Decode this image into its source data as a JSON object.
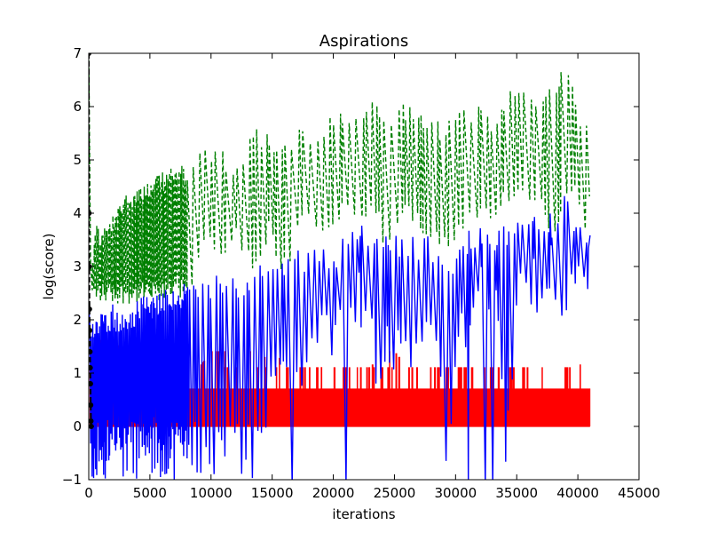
{
  "chart_data": {
    "type": "line",
    "title": "Aspirations",
    "xlabel": "iterations",
    "ylabel": "log(score)",
    "xlim": [
      0,
      45000
    ],
    "ylim": [
      -1,
      7
    ],
    "xticks": [
      0,
      5000,
      10000,
      15000,
      20000,
      25000,
      30000,
      35000,
      40000,
      45000
    ],
    "yticks": [
      -1,
      0,
      1,
      2,
      3,
      4,
      5,
      6,
      7
    ],
    "grid": false,
    "legend": "none",
    "series": [
      {
        "color": "#008000",
        "style": "dashed",
        "x": [
          0,
          200,
          500,
          1000,
          2000,
          3000,
          4000,
          5000,
          6000,
          7000,
          7800,
          8500,
          9500,
          10500,
          11500,
          12500,
          13500,
          14500,
          15500,
          16500,
          17500,
          18500,
          19500,
          20500,
          21500,
          22500,
          23500,
          24000,
          25000,
          26000,
          27000,
          28000,
          29000,
          30000,
          31000,
          32000,
          33000,
          34000,
          35000,
          36000,
          37000,
          38000,
          38800,
          39500,
          40200,
          41000
        ],
        "y": [
          7,
          3.0,
          3.9,
          3.7,
          4.0,
          4.4,
          4.6,
          4.6,
          4.8,
          4.9,
          4.9,
          5.1,
          5.2,
          5.4,
          5.0,
          5.2,
          5.6,
          5.6,
          5.4,
          5.5,
          5.7,
          5.5,
          5.8,
          5.9,
          6.0,
          6.1,
          6.1,
          5.9,
          6.0,
          6.1,
          5.9,
          6.0,
          5.6,
          5.9,
          6.0,
          6.1,
          5.7,
          6.3,
          6.4,
          6.5,
          6.3,
          6.5,
          6.8,
          6.6,
          6.0,
          5.9
        ],
        "min_y": [
          3.0,
          2.3,
          2.3,
          2.3,
          2.3,
          2.3,
          2.3,
          2.3,
          2.3,
          2.5,
          2.3,
          2.9,
          3.3,
          2.8,
          3.6,
          3.0,
          2.9,
          3.6,
          2.7,
          3.4,
          3.8,
          3.4,
          3.7,
          3.8,
          3.6,
          3.8,
          3.7,
          3.2,
          3.6,
          3.9,
          3.6,
          3.5,
          3.2,
          3.6,
          3.9,
          3.7,
          3.8,
          4.1,
          4.1,
          4.1,
          3.7,
          3.6,
          4.1,
          4.3,
          3.4,
          4.8
        ]
      },
      {
        "color": "#0000ff",
        "style": "solid",
        "x": [
          0,
          500,
          1000,
          2000,
          3000,
          4000,
          5000,
          6000,
          7000,
          8000,
          9000,
          10000,
          11000,
          12000,
          13000,
          14000,
          15000,
          16000,
          17000,
          18000,
          19000,
          20000,
          21000,
          22000,
          23000,
          24000,
          25000,
          26000,
          27000,
          28000,
          29000,
          30000,
          31000,
          32000,
          33000,
          34000,
          35000,
          36000,
          37000,
          38000,
          38800,
          39500,
          40000,
          40500,
          41000
        ],
        "y": [
          2.3,
          2.0,
          2.2,
          2.3,
          2.1,
          2.4,
          2.5,
          2.6,
          2.6,
          2.7,
          2.7,
          2.8,
          2.9,
          2.8,
          3.0,
          3.4,
          3.0,
          3.1,
          3.3,
          3.3,
          3.5,
          3.4,
          3.7,
          3.8,
          3.8,
          3.8,
          3.6,
          3.7,
          3.5,
          3.6,
          3.1,
          3.3,
          3.7,
          3.8,
          3.7,
          3.8,
          4.0,
          4.1,
          4.2,
          4.0,
          4.5,
          4.1,
          4.2,
          3.7,
          3.7
        ],
        "min_y": [
          -1,
          -1,
          -1,
          -1,
          -1,
          -1,
          -1,
          -1,
          -1,
          -1,
          -1,
          -1,
          -1,
          -1,
          -1,
          -1,
          0.6,
          0.8,
          0.2,
          1.0,
          1.2,
          1.3,
          1.5,
          2.0,
          0.8,
          0.8,
          1.0,
          1.0,
          0.8,
          1.0,
          -1,
          0.9,
          1.3,
          1.8,
          2.0,
          -1,
          1.7,
          2.0,
          2.1,
          2.3,
          1.8,
          2.2,
          2.1,
          2.3,
          2.7
        ]
      },
      {
        "color": "#ff0000",
        "style": "solid",
        "x": [
          0,
          500,
          1000,
          2000,
          3000,
          4000,
          5000,
          6000,
          7000,
          8000,
          9000,
          10000,
          11000,
          12000,
          13000,
          14000,
          15000,
          16000,
          17000,
          18000,
          19000,
          20000,
          21000,
          22000,
          23000,
          24000,
          25000,
          26000,
          27000,
          28000,
          29000,
          30000,
          31000,
          32000,
          33000,
          34000,
          35000,
          36000,
          37000,
          38000,
          39000,
          40000,
          41000
        ],
        "y": [
          1.1,
          1.9,
          1.6,
          1.6,
          1.4,
          1.4,
          1.1,
          1.4,
          1.1,
          1.4,
          1.1,
          1.4,
          1.4,
          1.4,
          1.4,
          1.4,
          1.1,
          1.4,
          1.1,
          1.1,
          1.1,
          1.4,
          1.1,
          1.1,
          1.1,
          1.4,
          1.4,
          1.1,
          1.1,
          1.1,
          1.1,
          1.1,
          1.1,
          1.1,
          1.1,
          1.1,
          1.1,
          1.1,
          1.1,
          1.4,
          1.4,
          1.1,
          1.4
        ],
        "base_y": 0,
        "mid_y": 0.7
      },
      {
        "color": "#000000",
        "style": "dashed-markers",
        "x": [
          0,
          20,
          40,
          60,
          80,
          100,
          120,
          140,
          160,
          180,
          200
        ],
        "y": [
          7.0,
          4.0,
          3.0,
          2.2,
          1.8,
          1.4,
          1.1,
          0.8,
          0.4,
          0.1,
          0.0
        ]
      }
    ]
  }
}
